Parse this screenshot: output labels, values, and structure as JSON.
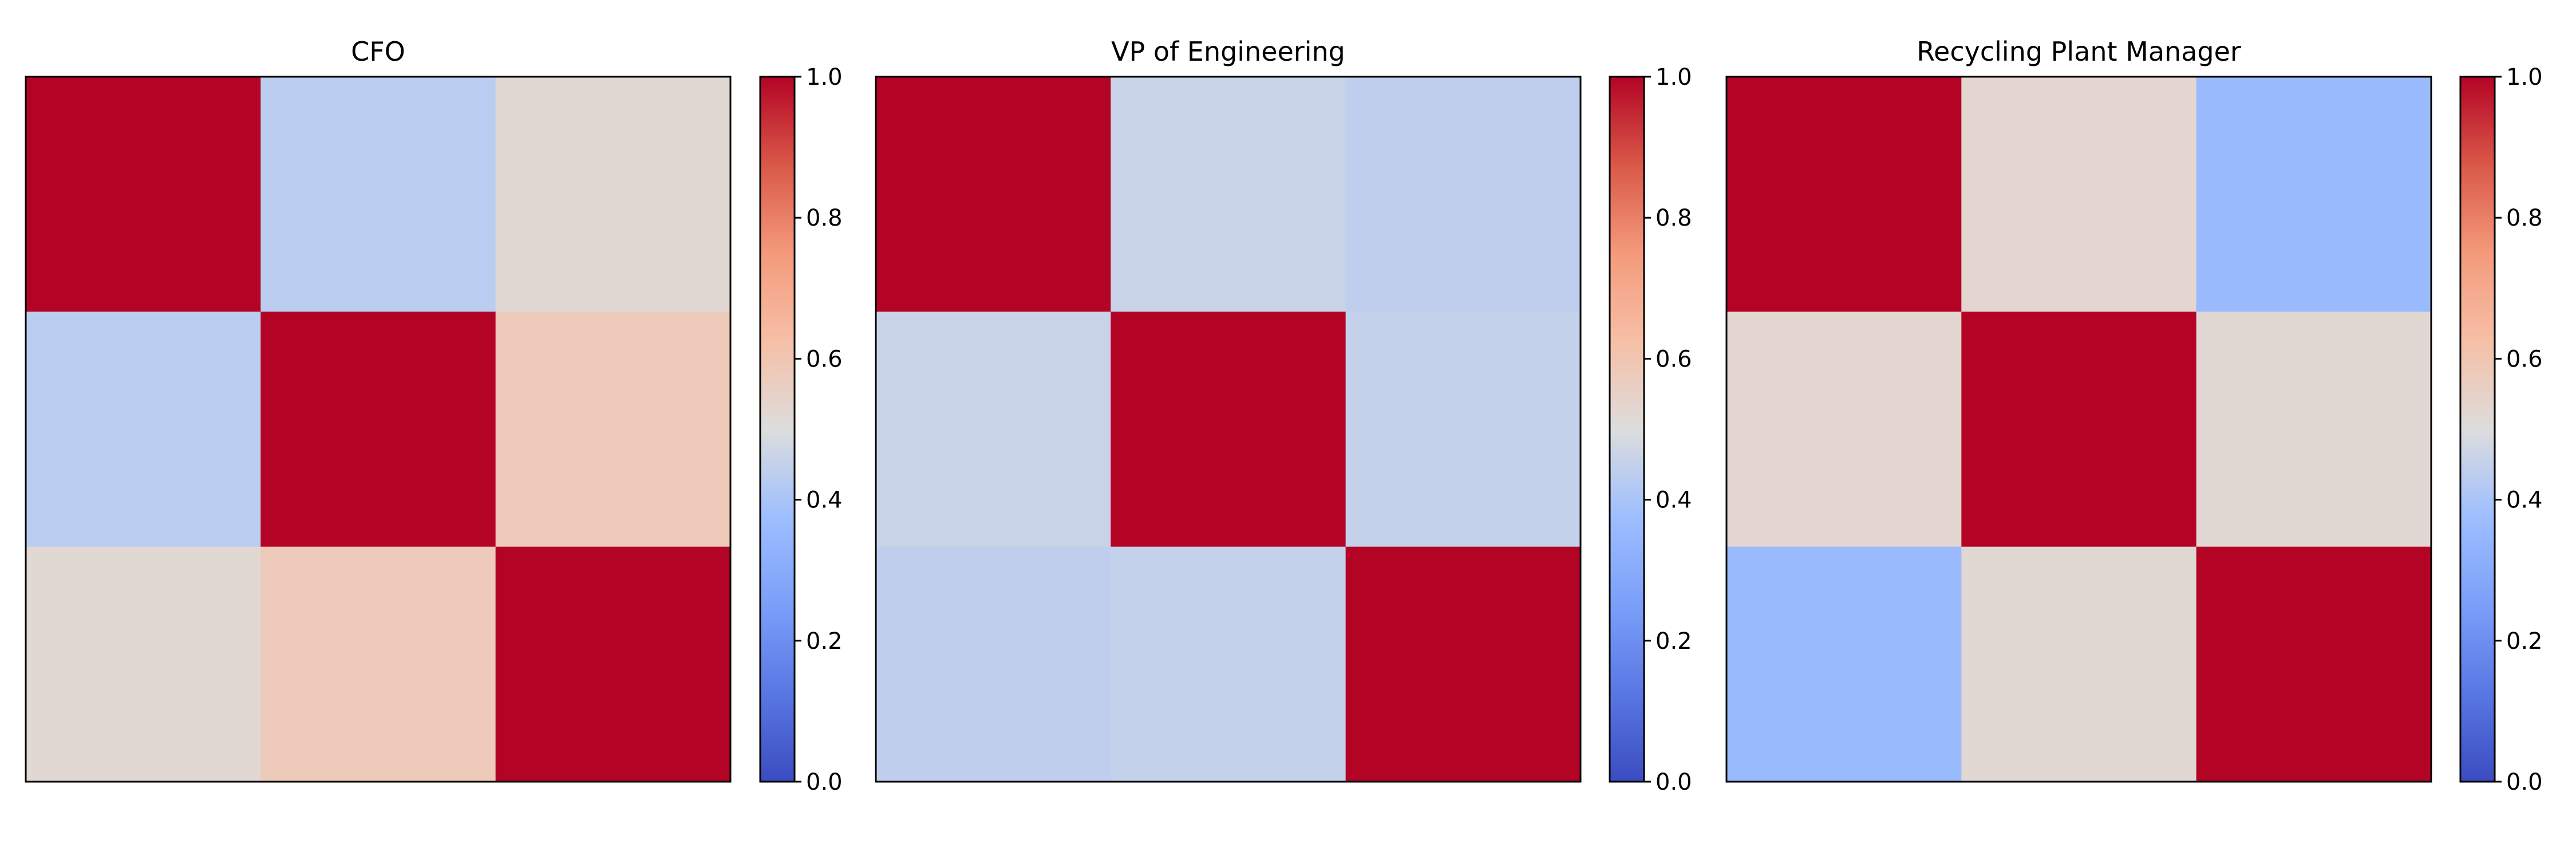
{
  "chart_data": [
    {
      "type": "heatmap",
      "title": "CFO",
      "matrix": [
        [
          1.0,
          0.43,
          0.52
        ],
        [
          0.43,
          1.0,
          0.58
        ],
        [
          0.52,
          0.58,
          1.0
        ]
      ],
      "colorbar": {
        "colormap": "coolwarm",
        "range": [
          0.0,
          1.0
        ],
        "ticks": [
          "0.0",
          "0.2",
          "0.4",
          "0.6",
          "0.8",
          "1.0"
        ]
      },
      "x_ticks": "none",
      "y_ticks": "none"
    },
    {
      "type": "heatmap",
      "title": "VP of Engineering",
      "matrix": [
        [
          1.0,
          0.46,
          0.44
        ],
        [
          0.46,
          1.0,
          0.45
        ],
        [
          0.44,
          0.45,
          1.0
        ]
      ],
      "colorbar": {
        "colormap": "coolwarm",
        "range": [
          0.0,
          1.0
        ],
        "ticks": [
          "0.0",
          "0.2",
          "0.4",
          "0.6",
          "0.8",
          "1.0"
        ]
      },
      "x_ticks": "none",
      "y_ticks": "none"
    },
    {
      "type": "heatmap",
      "title": "Recycling Plant Manager",
      "matrix": [
        [
          1.0,
          0.53,
          0.36
        ],
        [
          0.53,
          1.0,
          0.52
        ],
        [
          0.36,
          0.52,
          1.0
        ]
      ],
      "colorbar": {
        "colormap": "coolwarm",
        "range": [
          0.0,
          1.0
        ],
        "ticks": [
          "0.0",
          "0.2",
          "0.4",
          "0.6",
          "0.8",
          "1.0"
        ]
      },
      "x_ticks": "none",
      "y_ticks": "none"
    }
  ],
  "colors": {
    "axes_frame": "#000000",
    "background": "#ffffff"
  }
}
